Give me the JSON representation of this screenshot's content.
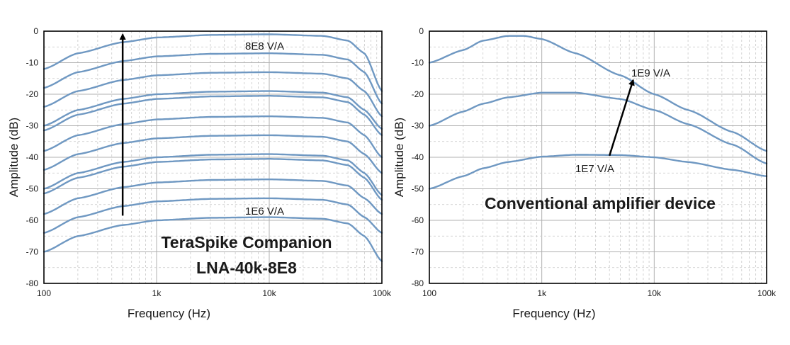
{
  "chart_data": [
    {
      "type": "line",
      "xscale": "log",
      "xlim": [
        100,
        100000
      ],
      "ylim": [
        -80,
        0
      ],
      "grid": true,
      "xlabel": "Frequency (Hz)",
      "ylabel": "Amplitude (dB)",
      "xticks": [
        "100",
        "1k",
        "10k",
        "100k"
      ],
      "yticks": [
        "0",
        "-10",
        "-20",
        "-30",
        "-40",
        "-50",
        "-60",
        "-70",
        "-80"
      ],
      "annotations": [
        {
          "text": "8E8 V/A"
        },
        {
          "text": "1E6 V/A"
        },
        {
          "text": "TeraSpike Companion"
        },
        {
          "text": "LNA-40k-8E8"
        }
      ],
      "arrow": {
        "from": {
          "x": 500,
          "y": -58.5
        },
        "to": {
          "x": 500,
          "y": -1
        }
      },
      "series": [
        {
          "x": [
            100,
            200,
            500,
            1000,
            3000,
            10000,
            30000,
            50000,
            70000,
            100000
          ],
          "y": [
            -12,
            -7,
            -3.5,
            -2,
            -1.2,
            -1,
            -1.5,
            -3,
            -7,
            -19
          ]
        },
        {
          "x": [
            100,
            200,
            500,
            1000,
            3000,
            10000,
            30000,
            50000,
            70000,
            100000
          ],
          "y": [
            -18,
            -13,
            -9.5,
            -8,
            -7.2,
            -7,
            -7.5,
            -9,
            -13,
            -23
          ]
        },
        {
          "x": [
            100,
            200,
            500,
            1000,
            3000,
            10000,
            30000,
            50000,
            70000,
            100000
          ],
          "y": [
            -24,
            -19,
            -15.5,
            -14,
            -13.2,
            -13,
            -13.5,
            -15,
            -19,
            -27
          ]
        },
        {
          "x": [
            100,
            200,
            500,
            1000,
            3000,
            10000,
            30000,
            50000,
            70000,
            100000
          ],
          "y": [
            -30,
            -25,
            -21.5,
            -20,
            -19.2,
            -19,
            -19.5,
            -21,
            -25,
            -31
          ]
        },
        {
          "x": [
            100,
            200,
            500,
            1000,
            3000,
            10000,
            30000,
            50000,
            70000,
            100000
          ],
          "y": [
            -31.5,
            -26.5,
            -23,
            -21.5,
            -20.7,
            -20.5,
            -21,
            -22.5,
            -26.5,
            -33
          ]
        },
        {
          "x": [
            100,
            200,
            500,
            1000,
            3000,
            10000,
            30000,
            50000,
            70000,
            100000
          ],
          "y": [
            -38,
            -33,
            -29.5,
            -28,
            -27.2,
            -27,
            -27.5,
            -29,
            -33,
            -40
          ]
        },
        {
          "x": [
            100,
            200,
            500,
            1000,
            3000,
            10000,
            30000,
            50000,
            70000,
            100000
          ],
          "y": [
            -44,
            -39,
            -35.5,
            -34,
            -33.2,
            -33,
            -33.5,
            -35,
            -39,
            -45
          ]
        },
        {
          "x": [
            100,
            200,
            500,
            1000,
            3000,
            10000,
            30000,
            50000,
            70000,
            100000
          ],
          "y": [
            -50,
            -45,
            -41.5,
            -40,
            -39.2,
            -39,
            -39.5,
            -41,
            -45,
            -52
          ]
        },
        {
          "x": [
            100,
            200,
            500,
            1000,
            3000,
            10000,
            30000,
            50000,
            70000,
            100000
          ],
          "y": [
            -51.5,
            -46.5,
            -43,
            -41.5,
            -40.7,
            -40.5,
            -41,
            -42.5,
            -46.5,
            -53.5
          ]
        },
        {
          "x": [
            100,
            200,
            500,
            1000,
            3000,
            10000,
            30000,
            50000,
            70000,
            100000
          ],
          "y": [
            -58,
            -53,
            -49.5,
            -48,
            -47.2,
            -47,
            -47.5,
            -49,
            -53,
            -58
          ]
        },
        {
          "x": [
            100,
            200,
            500,
            1000,
            3000,
            10000,
            30000,
            50000,
            70000,
            100000
          ],
          "y": [
            -64,
            -59,
            -55.5,
            -54,
            -53.2,
            -53,
            -53.5,
            -55,
            -59,
            -64
          ]
        },
        {
          "x": [
            100,
            200,
            500,
            1000,
            3000,
            10000,
            30000,
            50000,
            70000,
            100000
          ],
          "y": [
            -70,
            -65,
            -61.5,
            -60,
            -59.2,
            -59,
            -59.5,
            -61,
            -65,
            -73
          ]
        }
      ]
    },
    {
      "type": "line",
      "xscale": "log",
      "xlim": [
        100,
        100000
      ],
      "ylim": [
        -80,
        0
      ],
      "grid": true,
      "xlabel": "Frequency (Hz)",
      "ylabel": "Amplitude (dB)",
      "xticks": [
        "100",
        "1k",
        "10k",
        "100k"
      ],
      "yticks": [
        "0",
        "-10",
        "-20",
        "-30",
        "-40",
        "-50",
        "-60",
        "-70",
        "-80"
      ],
      "annotations": [
        {
          "text": "1E9 V/A"
        },
        {
          "text": "1E7 V/A"
        },
        {
          "text": "Conventional amplifier device"
        }
      ],
      "arrow": {
        "from": {
          "x": 4000,
          "y": -39.5
        },
        "to": {
          "x": 6500,
          "y": -15.5
        }
      },
      "series": [
        {
          "x": [
            100,
            200,
            300,
            500,
            700,
            1000,
            2000,
            5000,
            10000,
            20000,
            50000,
            100000
          ],
          "y": [
            -10,
            -6,
            -3,
            -1.5,
            -1.5,
            -2.5,
            -7,
            -14,
            -20,
            -25,
            -32,
            -38
          ]
        },
        {
          "x": [
            100,
            200,
            300,
            500,
            1000,
            2000,
            5000,
            10000,
            20000,
            50000,
            100000
          ],
          "y": [
            -30,
            -25.5,
            -23,
            -21,
            -19.5,
            -19.5,
            -21.5,
            -25,
            -29.5,
            -36,
            -42
          ]
        },
        {
          "x": [
            100,
            200,
            300,
            500,
            1000,
            2000,
            5000,
            10000,
            20000,
            50000,
            100000
          ],
          "y": [
            -50,
            -46,
            -43.5,
            -41.5,
            -39.8,
            -39.2,
            -39.3,
            -40,
            -41.5,
            -44,
            -46
          ]
        }
      ]
    }
  ]
}
